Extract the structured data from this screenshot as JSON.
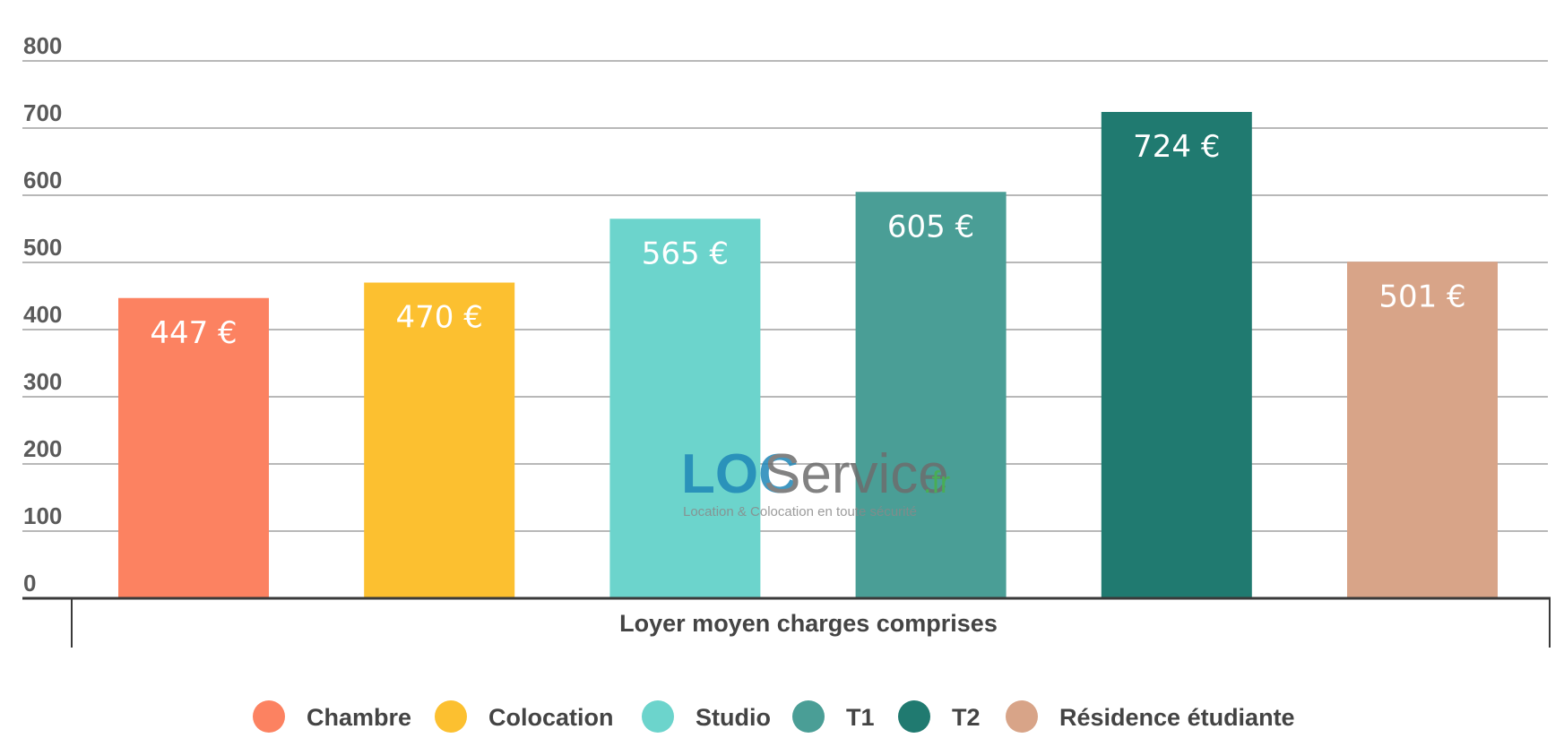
{
  "chart_data": {
    "type": "bar",
    "xlabel": "Loyer moyen charges comprises",
    "ylim": [
      0,
      800
    ],
    "yticks": [
      "0",
      "100",
      "200",
      "300",
      "400",
      "500",
      "600",
      "700",
      "800"
    ],
    "grid": true,
    "legend_position": "bottom",
    "categories": [
      "Chambre",
      "Colocation",
      "Studio",
      "T1",
      "T2",
      "Résidence étudiante"
    ],
    "values": [
      447,
      470,
      565,
      605,
      724,
      501
    ],
    "data_labels": [
      "447 €",
      "470 €",
      "565 €",
      "605 €",
      "724 €",
      "501 €"
    ],
    "colors": [
      "#fc8261",
      "#fcc030",
      "#6cd4cc",
      "#4a9e96",
      "#207a70",
      "#d8a488"
    ]
  },
  "watermark": {
    "brand_part1": "LOC",
    "brand_part2": "Service",
    "brand_suffix": ".fr",
    "tagline": "Location & Colocation en toute sécurité"
  }
}
